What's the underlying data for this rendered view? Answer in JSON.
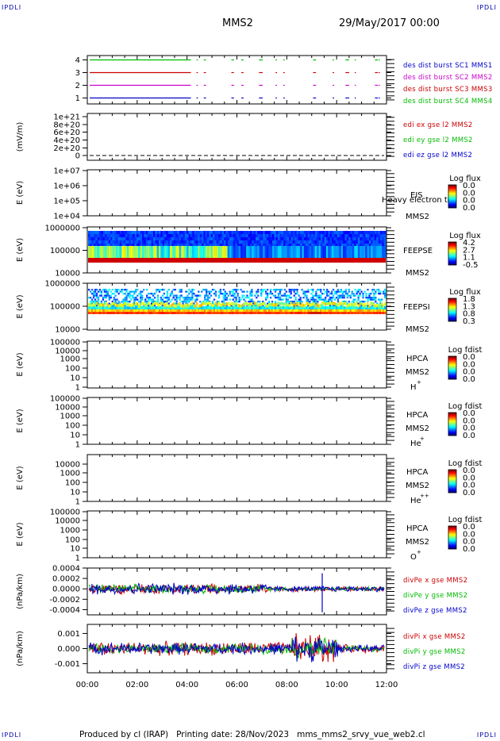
{
  "corner_labels": {
    "tl": "IPDLI",
    "tr": "IPDLI",
    "bl": "IPDLI",
    "br": "IPDLI"
  },
  "header": {
    "spacecraft": "MMS2",
    "date": "29/May/2017 00:00"
  },
  "footer": "Produced by cl (IRAP)   Printing date: 28/Nov/2023   mms_mms2_srvy_vue_web2.cl",
  "time_axis": {
    "ticks": [
      "00:00",
      "02:00",
      "04:00",
      "06:00",
      "08:00",
      "10:00",
      "12:00"
    ]
  },
  "colors": {
    "blue": "#0000cc",
    "magenta": "#cc00cc",
    "red": "#cc0000",
    "green": "#00bb00"
  },
  "chart_data": [
    {
      "type": "line",
      "name": "burst",
      "yticks": [
        "1",
        "2",
        "3",
        "4"
      ],
      "series": [
        {
          "name": "des dist burst SC1 MMS1",
          "color": "#0000cc"
        },
        {
          "name": "des dist burst SC2 MMS2",
          "color": "#cc00cc"
        },
        {
          "name": "des dist burst SC3 MMS3",
          "color": "#cc0000"
        },
        {
          "name": "des dist burst SC4 MMS4",
          "color": "#00bb00"
        }
      ]
    },
    {
      "type": "line",
      "name": "edi",
      "ylabel": "(mV/m)",
      "yticks": [
        "0",
        "2e+20",
        "4e+20",
        "6e+20",
        "8e+20",
        "1e+21"
      ],
      "series": [
        {
          "name": "edi ex gse l2 MMS2",
          "color": "#cc0000"
        },
        {
          "name": "edi ey gse l2 MMS2",
          "color": "#00bb00"
        },
        {
          "name": "edi ez gse l2 MMS2",
          "color": "#0000cc"
        }
      ]
    },
    {
      "type": "heatmap",
      "name": "eis",
      "ylabel": "E (eV)",
      "yticks": [
        "1e+04",
        "1e+05",
        "1e+06",
        "1e+07"
      ],
      "labels": [
        "EIS",
        "Heavy electron to",
        "MMS2"
      ],
      "colorbar": {
        "title": "Log flux",
        "ticks": [
          "0.0",
          "0.0",
          "0.0",
          "0.0"
        ]
      }
    },
    {
      "type": "heatmap",
      "name": "feepse",
      "ylabel": "E (eV)",
      "yticks": [
        "10000",
        "100000",
        "1000000"
      ],
      "labels": [
        "FEEPSE",
        "MMS2"
      ],
      "colorbar": {
        "title": "Log flux",
        "ticks": [
          "4.2",
          "2.7",
          "1.1",
          "-0.5"
        ]
      }
    },
    {
      "type": "heatmap",
      "name": "feepsi",
      "ylabel": "E (eV)",
      "yticks": [
        "10000",
        "100000",
        "1000000"
      ],
      "labels": [
        "FEEPSI",
        "MMS2"
      ],
      "colorbar": {
        "title": "Log flux",
        "ticks": [
          "1.8",
          "1.3",
          "0.8",
          "0.3"
        ]
      }
    },
    {
      "type": "heatmap",
      "name": "hpca_h",
      "ylabel": "E (eV)",
      "yticks": [
        "1",
        "10",
        "100",
        "1000",
        "10000",
        "100000"
      ],
      "labels": [
        "HPCA",
        "MMS2",
        "H",
        "+"
      ],
      "colorbar": {
        "title": "Log fdist",
        "ticks": [
          "0.0",
          "0.0",
          "0.0",
          "0.0"
        ]
      }
    },
    {
      "type": "heatmap",
      "name": "hpca_he",
      "ylabel": "E (eV)",
      "yticks": [
        "1",
        "10",
        "100",
        "1000",
        "10000",
        "100000"
      ],
      "labels": [
        "HPCA",
        "MMS2",
        "He",
        "+"
      ],
      "colorbar": {
        "title": "Log fdist",
        "ticks": [
          "0.0",
          "0.0",
          "0.0",
          "0.0"
        ]
      }
    },
    {
      "type": "heatmap",
      "name": "hpca_hepp",
      "ylabel": "E (eV)",
      "yticks": [
        "1",
        "10",
        "100",
        "1000",
        "10000"
      ],
      "labels": [
        "HPCA",
        "MMS2",
        "He",
        "++"
      ],
      "colorbar": {
        "title": "Log fdist",
        "ticks": [
          "0.0",
          "0.0",
          "0.0",
          "0.0"
        ]
      }
    },
    {
      "type": "heatmap",
      "name": "hpca_o",
      "ylabel": "E (eV)",
      "yticks": [
        "1",
        "10",
        "100",
        "1000",
        "10000",
        "100000"
      ],
      "labels": [
        "HPCA",
        "MMS2",
        "O",
        "+"
      ],
      "colorbar": {
        "title": "Log fdist",
        "ticks": [
          "0.0",
          "0.0",
          "0.0",
          "0.0"
        ]
      }
    },
    {
      "type": "line",
      "name": "divpe",
      "ylabel": "(nPa/km)",
      "yticks": [
        "-0.0004",
        "-0.0002",
        "0.0000",
        "0.0002",
        "0.0004"
      ],
      "ylim": [
        -0.0005,
        0.0004
      ],
      "series": [
        {
          "name": "divPe x gse MMS2",
          "color": "#cc0000"
        },
        {
          "name": "divPe y gse MMS2",
          "color": "#00bb00"
        },
        {
          "name": "divPe z gse MMS2",
          "color": "#0000cc"
        }
      ]
    },
    {
      "type": "line",
      "name": "divpi",
      "ylabel": "(nPa/km)",
      "yticks": [
        "-0.001",
        "0.000",
        "0.001"
      ],
      "ylim": [
        -0.0016,
        0.0016
      ],
      "series": [
        {
          "name": "divPi x gse MMS2",
          "color": "#cc0000"
        },
        {
          "name": "divPi y gse MMS2",
          "color": "#00bb00"
        },
        {
          "name": "divPi z gse MMS2",
          "color": "#0000cc"
        }
      ]
    }
  ]
}
